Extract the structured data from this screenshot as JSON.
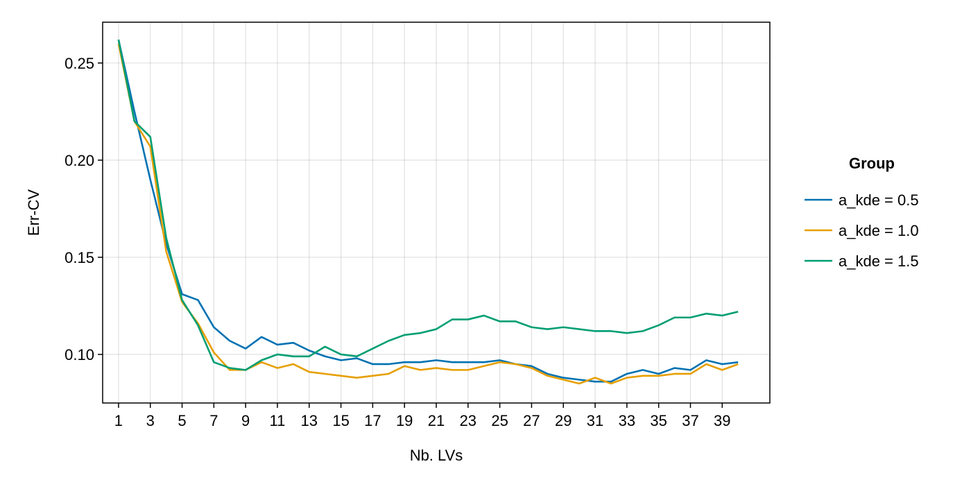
{
  "chart_data": {
    "type": "line",
    "title": "",
    "xlabel": "Nb. LVs",
    "ylabel": "Err-CV",
    "xlim": [
      0,
      42
    ],
    "ylim": [
      0.075,
      0.271
    ],
    "xticks": [
      1,
      3,
      5,
      7,
      9,
      11,
      13,
      15,
      17,
      19,
      21,
      23,
      25,
      27,
      29,
      31,
      33,
      35,
      37,
      39
    ],
    "yticks": [
      0.1,
      0.15,
      0.2,
      0.25
    ],
    "ytick_labels": [
      "0.10",
      "0.15",
      "0.20",
      "0.25"
    ],
    "grid": true,
    "legend": {
      "title": "Group",
      "position": "right"
    },
    "x": [
      1,
      2,
      3,
      4,
      5,
      6,
      7,
      8,
      9,
      10,
      11,
      12,
      13,
      14,
      15,
      16,
      17,
      18,
      19,
      20,
      21,
      22,
      23,
      24,
      25,
      26,
      27,
      28,
      29,
      30,
      31,
      32,
      33,
      34,
      35,
      36,
      37,
      38,
      39,
      40
    ],
    "series": [
      {
        "name": "a_kde = 0.5",
        "color": "#0072B2",
        "values": [
          0.262,
          0.225,
          0.19,
          0.157,
          0.131,
          0.128,
          0.114,
          0.107,
          0.103,
          0.109,
          0.105,
          0.106,
          0.102,
          0.099,
          0.097,
          0.098,
          0.095,
          0.095,
          0.096,
          0.096,
          0.097,
          0.096,
          0.096,
          0.096,
          0.097,
          0.095,
          0.094,
          0.09,
          0.088,
          0.087,
          0.086,
          0.086,
          0.09,
          0.092,
          0.09,
          0.093,
          0.092,
          0.097,
          0.095,
          0.096
        ]
      },
      {
        "name": "a_kde = 1.0",
        "color": "#E69F00",
        "values": [
          0.26,
          0.22,
          0.207,
          0.153,
          0.127,
          0.116,
          0.101,
          0.092,
          0.092,
          0.096,
          0.093,
          0.095,
          0.091,
          0.09,
          0.089,
          0.088,
          0.089,
          0.09,
          0.094,
          0.092,
          0.093,
          0.092,
          0.092,
          0.094,
          0.096,
          0.095,
          0.093,
          0.089,
          0.087,
          0.085,
          0.088,
          0.085,
          0.088,
          0.089,
          0.089,
          0.09,
          0.09,
          0.095,
          0.092,
          0.095
        ]
      },
      {
        "name": "a_kde = 1.5",
        "color": "#009E73",
        "values": [
          0.262,
          0.22,
          0.212,
          0.16,
          0.128,
          0.115,
          0.096,
          0.093,
          0.092,
          0.097,
          0.1,
          0.099,
          0.099,
          0.104,
          0.1,
          0.099,
          0.103,
          0.107,
          0.11,
          0.111,
          0.113,
          0.118,
          0.118,
          0.12,
          0.117,
          0.117,
          0.114,
          0.113,
          0.114,
          0.113,
          0.112,
          0.112,
          0.111,
          0.112,
          0.115,
          0.119,
          0.119,
          0.121,
          0.12,
          0.122
        ]
      }
    ]
  }
}
